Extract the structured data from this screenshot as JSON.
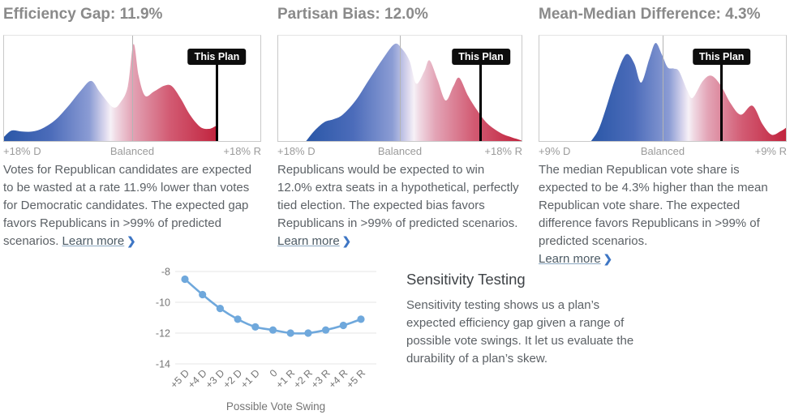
{
  "colors": {
    "panel_title": "#8a8a8a",
    "body_text": "#5c6166",
    "axis_label": "#9b9b9b",
    "balanced_line": "#b4b4b4",
    "marker": "#000000",
    "badge_bg": "#0d0d0d",
    "badge_text": "#ffffff",
    "link_chevron": "#3e76c4",
    "sensitivity_line": "#6fa8dc",
    "gridline": "#e4e4e4",
    "tick_text": "#757575"
  },
  "density_gradient": [
    {
      "o": 0.0,
      "c": "#2a57a7"
    },
    {
      "o": 0.22,
      "c": "#4c6cba"
    },
    {
      "o": 0.4,
      "c": "#8b9cd4"
    },
    {
      "o": 0.475,
      "c": "#ddd9ee"
    },
    {
      "o": 0.5,
      "c": "#f6f1f7"
    },
    {
      "o": 0.525,
      "c": "#f0dae4"
    },
    {
      "o": 0.6,
      "c": "#e3a4b6"
    },
    {
      "o": 0.78,
      "c": "#d25a72"
    },
    {
      "o": 1.0,
      "c": "#c1243e"
    }
  ],
  "panels": [
    {
      "title": "Efficiency Gap: 11.9%",
      "description": "Votes for Republican candidates are expected to be wasted at a rate 11.9% lower than votes for Democratic candidates. The expected gap favors Republicans in >99% of predicted scenarios.",
      "learn_more_label": "Learn more",
      "chevron": "❯",
      "chart_data": {
        "type": "area-density",
        "x_left_label": "+18% D",
        "x_center_label": "Balanced",
        "x_right_label": "+18% R",
        "domain": [
          -18,
          18
        ],
        "this_plan_value": 11.9,
        "marker_label": "This Plan",
        "curve": [
          [
            0,
            0.04
          ],
          [
            0.03,
            0.1
          ],
          [
            0.07,
            0.09
          ],
          [
            0.11,
            0.09
          ],
          [
            0.15,
            0.12
          ],
          [
            0.2,
            0.2
          ],
          [
            0.25,
            0.33
          ],
          [
            0.3,
            0.48
          ],
          [
            0.34,
            0.57
          ],
          [
            0.375,
            0.46
          ],
          [
            0.425,
            0.32
          ],
          [
            0.455,
            0.37
          ],
          [
            0.483,
            0.52
          ],
          [
            0.505,
            0.92
          ],
          [
            0.525,
            0.62
          ],
          [
            0.55,
            0.43
          ],
          [
            0.585,
            0.47
          ],
          [
            0.625,
            0.525
          ],
          [
            0.655,
            0.52
          ],
          [
            0.69,
            0.4
          ],
          [
            0.725,
            0.25
          ],
          [
            0.765,
            0.135
          ],
          [
            0.8,
            0.115
          ],
          [
            0.828,
            0.145
          ],
          [
            0.831,
            0.14
          ]
        ]
      }
    },
    {
      "title": "Partisan Bias: 12.0%",
      "description": "Republicans would be expected to win 12.0% extra seats in a hypothetical, perfectly tied election. The expected bias favors Republicans in >99% of predicted scenarios.",
      "learn_more_label": "Learn more",
      "chevron": "❯",
      "chart_data": {
        "type": "area-density",
        "x_left_label": "+18% D",
        "x_center_label": "Balanced",
        "x_right_label": "+18% R",
        "domain": [
          -18,
          18
        ],
        "this_plan_value": 12.0,
        "marker_label": "This Plan",
        "curve": [
          [
            0.115,
            0
          ],
          [
            0.15,
            0.1
          ],
          [
            0.19,
            0.18
          ],
          [
            0.225,
            0.205
          ],
          [
            0.265,
            0.25
          ],
          [
            0.32,
            0.39
          ],
          [
            0.37,
            0.57
          ],
          [
            0.43,
            0.78
          ],
          [
            0.478,
            0.92
          ],
          [
            0.507,
            0.88
          ],
          [
            0.54,
            0.76
          ],
          [
            0.567,
            0.545
          ],
          [
            0.6,
            0.66
          ],
          [
            0.622,
            0.765
          ],
          [
            0.655,
            0.58
          ],
          [
            0.688,
            0.385
          ],
          [
            0.72,
            0.52
          ],
          [
            0.744,
            0.6
          ],
          [
            0.78,
            0.43
          ],
          [
            0.818,
            0.29
          ],
          [
            0.86,
            0.165
          ],
          [
            0.915,
            0.075
          ],
          [
            0.96,
            0.035
          ],
          [
            1.0,
            0.005
          ]
        ]
      }
    },
    {
      "title": "Mean-Median Difference: 4.3%",
      "description": "The median Republican vote share is expected to be 4.3% higher than the mean Republican vote share. The expected difference favors Republicans in >99% of predicted scenarios.",
      "learn_more_label": "Learn more",
      "chevron": "❯",
      "chart_data": {
        "type": "area-density",
        "x_left_label": "+9% D",
        "x_center_label": "Balanced",
        "x_right_label": "+9% R",
        "domain": [
          -9,
          9
        ],
        "this_plan_value": 4.3,
        "marker_label": "This Plan",
        "curve": [
          [
            0.21,
            0
          ],
          [
            0.24,
            0.11
          ],
          [
            0.27,
            0.31
          ],
          [
            0.305,
            0.57
          ],
          [
            0.337,
            0.77
          ],
          [
            0.359,
            0.825
          ],
          [
            0.386,
            0.73
          ],
          [
            0.413,
            0.555
          ],
          [
            0.446,
            0.78
          ],
          [
            0.471,
            0.93
          ],
          [
            0.497,
            0.82
          ],
          [
            0.52,
            0.7
          ],
          [
            0.545,
            0.688
          ],
          [
            0.567,
            0.66
          ],
          [
            0.6,
            0.48
          ],
          [
            0.622,
            0.41
          ],
          [
            0.663,
            0.57
          ],
          [
            0.697,
            0.62
          ],
          [
            0.735,
            0.53
          ],
          [
            0.775,
            0.36
          ],
          [
            0.817,
            0.25
          ],
          [
            0.864,
            0.335
          ],
          [
            0.905,
            0.16
          ],
          [
            0.942,
            0.06
          ],
          [
            0.98,
            0.095
          ],
          [
            1.0,
            0.125
          ]
        ]
      }
    }
  ],
  "sensitivity": {
    "heading": "Sensitivity Testing",
    "description": "Sensitivity testing shows us a plan’s expected efficiency gap given a range of possible vote swings. It let us evaluate the durability of a plan’s skew.",
    "chart_data": {
      "type": "line",
      "categories": [
        "+5 D",
        "+4 D",
        "+3 D",
        "+2 D",
        "+1 D",
        "0",
        "+1 R",
        "+2 R",
        "+3 R",
        "+4 R",
        "+5 R"
      ],
      "values": [
        -8.5,
        -9.5,
        -10.4,
        -11.1,
        -11.6,
        -11.8,
        -12.0,
        -12.0,
        -11.8,
        -11.5,
        -11.1
      ],
      "xlabel": "Possible Vote Swing",
      "ylim": [
        -14.8,
        -7.6
      ],
      "yticks": [
        -8,
        -10,
        -12,
        -14
      ],
      "grid": true,
      "legend": false
    }
  }
}
